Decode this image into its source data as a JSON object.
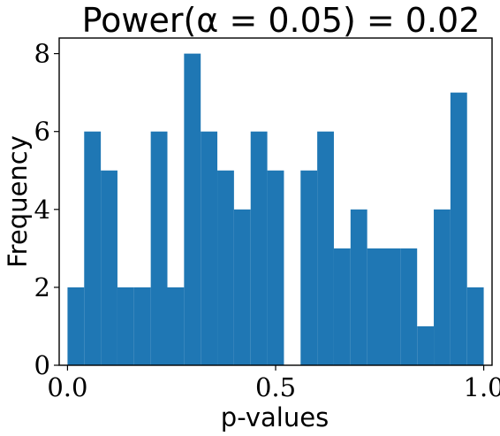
{
  "chart_data": {
    "type": "bar",
    "title": "Power(α = 0.05) = 0.02",
    "xlabel": "p-values",
    "ylabel": "Frequency",
    "bin_width": 0.05,
    "bins": [
      {
        "x0": 0.0,
        "value": 2
      },
      {
        "x0": 0.04,
        "value": 6
      },
      {
        "x0": 0.08,
        "value": 5
      },
      {
        "x0": 0.12,
        "value": 2
      },
      {
        "x0": 0.16,
        "value": 2
      },
      {
        "x0": 0.2,
        "value": 6
      },
      {
        "x0": 0.24,
        "value": 2
      },
      {
        "x0": 0.28,
        "value": 8
      },
      {
        "x0": 0.32,
        "value": 6
      },
      {
        "x0": 0.36,
        "value": 5
      },
      {
        "x0": 0.4,
        "value": 4
      },
      {
        "x0": 0.44,
        "value": 6
      },
      {
        "x0": 0.48,
        "value": 5
      },
      {
        "x0": 0.52,
        "value": 0
      },
      {
        "x0": 0.56,
        "value": 5
      },
      {
        "x0": 0.6,
        "value": 6
      },
      {
        "x0": 0.64,
        "value": 3
      },
      {
        "x0": 0.68,
        "value": 4
      },
      {
        "x0": 0.72,
        "value": 3
      },
      {
        "x0": 0.76,
        "value": 3
      },
      {
        "x0": 0.8,
        "value": 3
      },
      {
        "x0": 0.84,
        "value": 1
      },
      {
        "x0": 0.88,
        "value": 4
      },
      {
        "x0": 0.92,
        "value": 7
      },
      {
        "x0": 0.96,
        "value": 2
      }
    ],
    "xlim": [
      -0.02,
      1.02
    ],
    "ylim": [
      0,
      8.4
    ],
    "xticks": [
      0.0,
      0.5,
      1.0
    ],
    "xtick_labels": [
      "0.0",
      "0.5",
      "1.0"
    ],
    "yticks": [
      0,
      2,
      4,
      6,
      8
    ],
    "ytick_labels": [
      "0",
      "2",
      "4",
      "6",
      "8"
    ],
    "bar_color": "#1f77b4",
    "grid": false
  }
}
